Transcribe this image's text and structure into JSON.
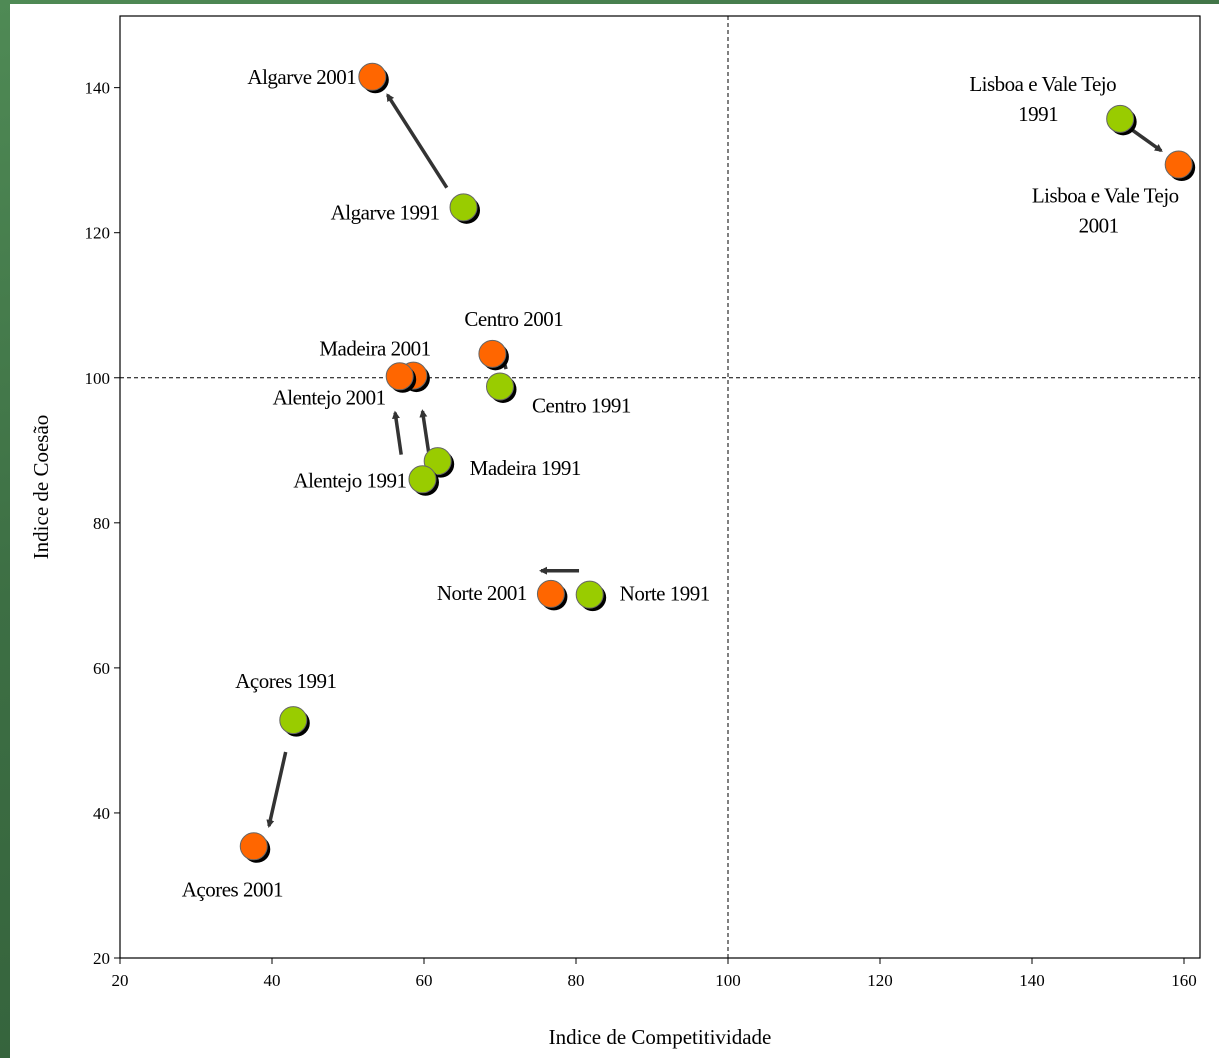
{
  "chart_data": {
    "type": "scatter",
    "xlabel": "Indice de Competitividade",
    "ylabel": "Indice de Coesão",
    "xlim": [
      20,
      160
    ],
    "ylim": [
      20,
      150
    ],
    "xticks": [
      20,
      40,
      60,
      80,
      100,
      120,
      140,
      160
    ],
    "yticks": [
      20,
      40,
      60,
      80,
      100,
      120,
      140
    ],
    "reference_lines": {
      "x": 100,
      "y": 100,
      "style": "dashed"
    },
    "colors": {
      "1991": "#99cc00",
      "2001": "#ff6600"
    },
    "points": [
      {
        "label": "Algarve 2001",
        "x": 53.2,
        "y": 141.5,
        "year": "2001"
      },
      {
        "label": "Algarve 1991",
        "x": 65.2,
        "y": 123.5,
        "year": "1991"
      },
      {
        "label": "Lisboa e Vale Tejo 1991",
        "x": 151.6,
        "y": 135.7,
        "year": "1991"
      },
      {
        "label": "Lisboa e Vale Tejo 2001",
        "x": 159.3,
        "y": 129.4,
        "year": "2001"
      },
      {
        "label": "Centro 2001",
        "x": 69.0,
        "y": 103.3,
        "year": "2001"
      },
      {
        "label": "Centro 1991",
        "x": 70.0,
        "y": 98.8,
        "year": "1991"
      },
      {
        "label": "Madeira 2001",
        "x": 58.6,
        "y": 100.3,
        "year": "2001"
      },
      {
        "label": "Alentejo 2001",
        "x": 56.8,
        "y": 100.2,
        "year": "2001"
      },
      {
        "label": "Madeira 1991",
        "x": 61.8,
        "y": 88.5,
        "year": "1991"
      },
      {
        "label": "Alentejo 1991",
        "x": 59.8,
        "y": 86.0,
        "year": "1991"
      },
      {
        "label": "Norte 2001",
        "x": 76.7,
        "y": 70.2,
        "year": "2001"
      },
      {
        "label": "Norte 1991",
        "x": 81.8,
        "y": 70.1,
        "year": "1991"
      },
      {
        "label": "Açores 1991",
        "x": 42.8,
        "y": 52.8,
        "year": "1991"
      },
      {
        "label": "Açores 2001",
        "x": 37.6,
        "y": 35.4,
        "year": "2001"
      }
    ]
  }
}
